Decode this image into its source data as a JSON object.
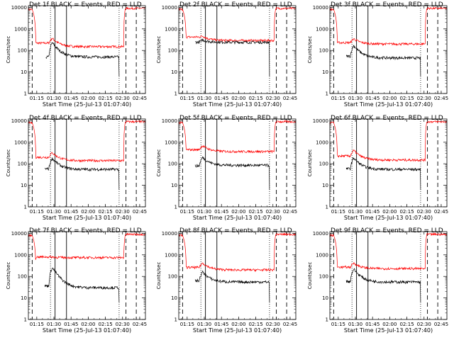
{
  "figure": {
    "panel_titles": [
      "Det 1f BLACK = Events, RED = LLD",
      "Det 2f BLACK = Events, RED = LLD",
      "Det 3f BLACK = Events, RED = LLD",
      "Det 4f BLACK = Events, RED = LLD",
      "Det 5f BLACK = Events, RED = LLD",
      "Det 6f BLACK = Events, RED = LLD",
      "Det 7f BLACK = Events, RED = LLD",
      "Det 8f BLACK = Events, RED = LLD",
      "Det 9f BLACK = Events, RED = LLD"
    ],
    "xlabel": "Start Time (25-Jul-13 01:07:40)",
    "ylabel": "Counts/sec",
    "colors": {
      "events": "#000000",
      "lld": "#ff0000",
      "axes": "#000000",
      "background": "#ffffff"
    }
  },
  "chart_data": {
    "type": "line",
    "x_ticks": [
      "01:15",
      "01:30",
      "01:45",
      "02:00",
      "02:15",
      "02:30",
      "02:45"
    ],
    "y_ticks": [
      "1",
      "10",
      "100",
      "1000",
      "10000"
    ],
    "y_scale": "log",
    "ylim": [
      1,
      12000
    ],
    "xlim": [
      "01:07:40",
      "02:50:00"
    ],
    "grid": false,
    "legend": "none",
    "series": [
      {
        "name": "BLACK = Events",
        "color": "#000000"
      },
      {
        "name": "RED = LLD",
        "color": "#ff0000"
      }
    ],
    "vertical_markers": {
      "dotted": [
        "01:27",
        "02:27"
      ],
      "solid": [
        "01:31",
        "01:41"
      ],
      "dashed": [
        "01:11",
        "02:33",
        "02:42"
      ]
    },
    "panels": [
      {
        "detector": "1f",
        "events": {
          "start": "01:23",
          "end": "02:27",
          "base": 50,
          "peak": 230,
          "decay": 55
        },
        "lld": {
          "base": 150,
          "peak": 370,
          "pre": 220,
          "saturated_after": "02:31"
        }
      },
      {
        "detector": "2f",
        "events": {
          "start": "01:22",
          "end": "02:27",
          "base": 240,
          "peak": 310,
          "decay": 270
        },
        "lld": {
          "base": 290,
          "peak": 470,
          "pre": 420,
          "saturated_after": "02:31"
        }
      },
      {
        "detector": "3f",
        "events": {
          "start": "01:22",
          "end": "02:27",
          "base": 45,
          "peak": 170,
          "decay": 60
        },
        "lld": {
          "base": 200,
          "peak": 350,
          "pre": 230,
          "saturated_after": "02:31"
        }
      },
      {
        "detector": "4f",
        "events": {
          "start": "01:22",
          "end": "02:27",
          "base": 55,
          "peak": 180,
          "decay": 65
        },
        "lld": {
          "base": 140,
          "peak": 330,
          "pre": 200,
          "saturated_after": "02:31"
        }
      },
      {
        "detector": "5f",
        "events": {
          "start": "01:22",
          "end": "02:27",
          "base": 85,
          "peak": 200,
          "decay": 90
        },
        "lld": {
          "base": 370,
          "peak": 700,
          "pre": 450,
          "saturated_after": "02:31"
        }
      },
      {
        "detector": "6f",
        "events": {
          "start": "01:22",
          "end": "02:27",
          "base": 55,
          "peak": 190,
          "decay": 65
        },
        "lld": {
          "base": 150,
          "peak": 420,
          "pre": 230,
          "saturated_after": "02:31"
        }
      },
      {
        "detector": "7f",
        "events": {
          "start": "01:22",
          "end": "02:27",
          "base": 30,
          "peak": 260,
          "decay": 40
        },
        "lld": {
          "base": 750,
          "peak": 800,
          "pre": 800,
          "saturated_after": "02:31"
        }
      },
      {
        "detector": "8f",
        "events": {
          "start": "01:22",
          "end": "02:27",
          "base": 55,
          "peak": 160,
          "decay": 70
        },
        "lld": {
          "base": 200,
          "peak": 420,
          "pre": 260,
          "saturated_after": "02:31"
        }
      },
      {
        "detector": "9f",
        "events": {
          "start": "01:22",
          "end": "02:27",
          "base": 55,
          "peak": 220,
          "decay": 65
        },
        "lld": {
          "base": 230,
          "peak": 420,
          "pre": 270,
          "saturated_after": "02:31"
        }
      }
    ]
  }
}
